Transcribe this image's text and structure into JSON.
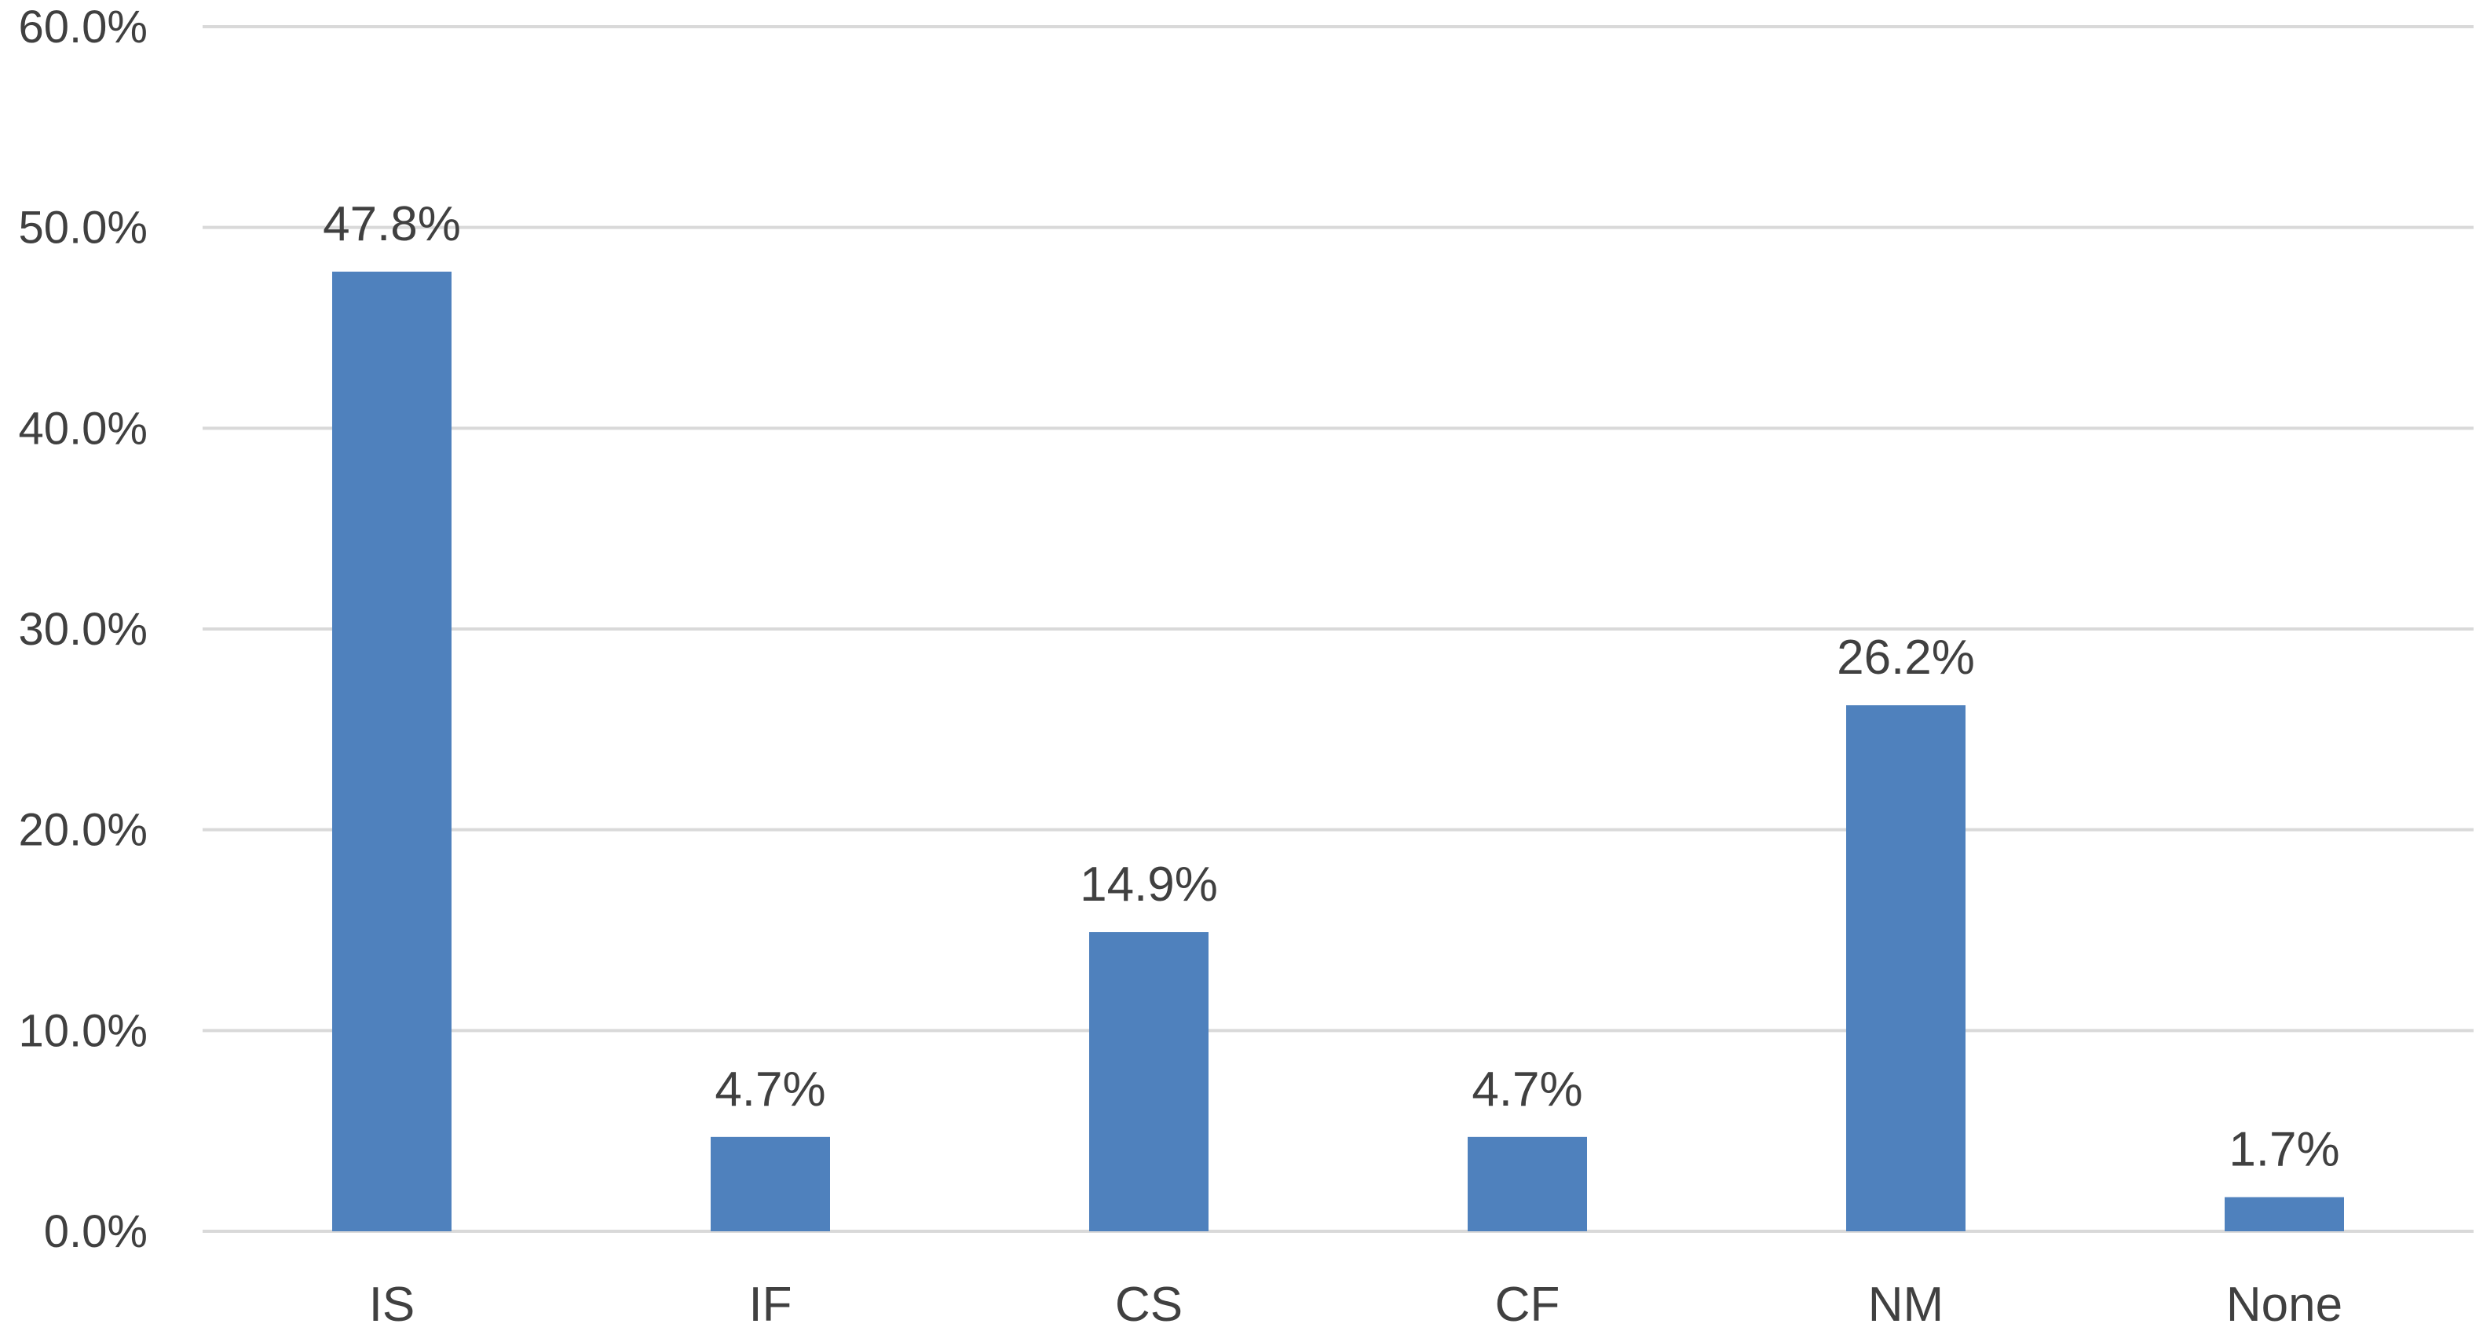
{
  "chart_data": {
    "type": "bar",
    "categories": [
      "IS",
      "IF",
      "CS",
      "CF",
      "NM",
      "None"
    ],
    "values": [
      47.8,
      4.7,
      14.9,
      4.7,
      26.2,
      1.7
    ],
    "value_labels": [
      "47.8%",
      "4.7%",
      "14.9%",
      "4.7%",
      "26.2%",
      "1.7%"
    ],
    "y_ticks": [
      0,
      10,
      20,
      30,
      40,
      50,
      60
    ],
    "y_tick_labels": [
      "0.0%",
      "10.0%",
      "20.0%",
      "30.0%",
      "40.0%",
      "50.0%",
      "60.0%"
    ],
    "ylim": [
      0,
      60
    ],
    "grid": true,
    "legend": "none",
    "bar_color": "#4f81bd",
    "grid_color": "#d9d9d9",
    "text_color": "#404040"
  }
}
